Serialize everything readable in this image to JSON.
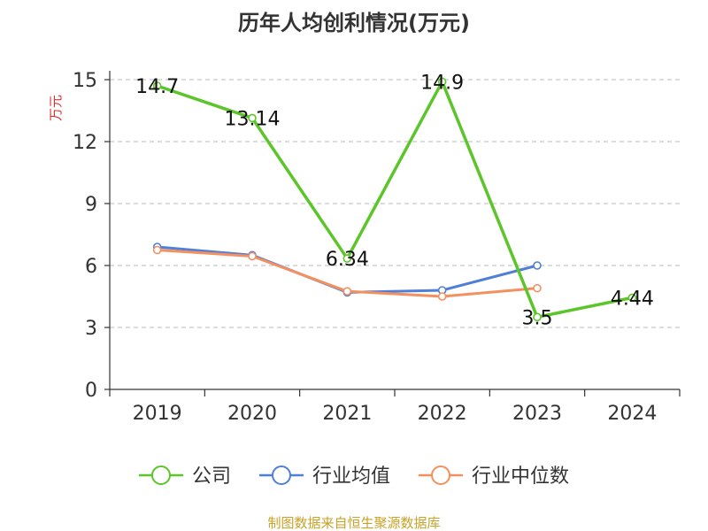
{
  "chart_data": {
    "type": "line",
    "title": "历年人均创利情况(万元)",
    "ylabel": "万元",
    "categories": [
      "2019",
      "2020",
      "2021",
      "2022",
      "2023",
      "2024"
    ],
    "ylim": [
      0,
      15
    ],
    "yticks": [
      0,
      3,
      6,
      9,
      12,
      15
    ],
    "grid": true,
    "legend_position": "bottom",
    "series": [
      {
        "name": "公司",
        "color": "#5cc52a",
        "values": [
          14.7,
          13.14,
          6.34,
          14.9,
          3.5,
          4.44
        ],
        "labels": [
          "14.7",
          "13.14",
          "6.34",
          "14.9",
          "3.5",
          "4.44"
        ]
      },
      {
        "name": "行业均值",
        "color": "#4f7fd6",
        "values": [
          6.9,
          6.5,
          4.7,
          4.8,
          6.0,
          null
        ]
      },
      {
        "name": "行业中位数",
        "color": "#f4905f",
        "values": [
          6.75,
          6.45,
          4.75,
          4.5,
          4.9,
          null
        ]
      }
    ],
    "source": "制图数据来自恒生聚源数据库"
  }
}
